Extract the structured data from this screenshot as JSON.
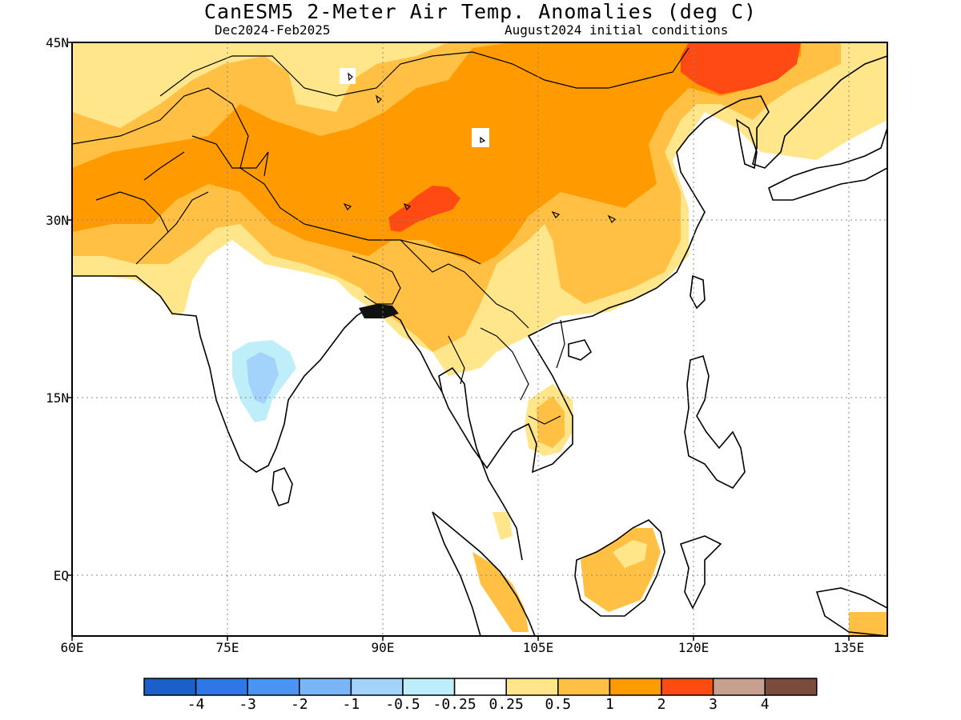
{
  "title": "CanESM5 2-Meter Air Temp. Anomalies (deg C)",
  "subtitle_left": "Dec2024-Feb2025",
  "subtitle_right": "August2024 initial conditions",
  "latitude_labels": [
    "45N",
    "30N",
    "15N",
    "EQ"
  ],
  "longitude_labels": [
    "60E",
    "75E",
    "90E",
    "105E",
    "120E",
    "135E"
  ],
  "colorbar": {
    "colors": [
      "#1c5fcb",
      "#2f76e8",
      "#4b95f2",
      "#7ab6f6",
      "#a3d2fa",
      "#bfeefb",
      "#ffffff",
      "#ffe68a",
      "#ffc043",
      "#ff9a00",
      "#ff4a14",
      "#c8a091",
      "#7a4c3e"
    ],
    "labels": [
      "-4",
      "-3",
      "-2",
      "-1",
      "-0.5",
      "-0.25",
      "0.25",
      "0.5",
      "1",
      "2",
      "3",
      "4"
    ]
  },
  "legend_colors": {
    "anomaly_0_25_0_5": "#ffe68a",
    "anomaly_0_5_1": "#ffc043",
    "anomaly_1_2": "#ff9a00",
    "anomaly_2_3": "#ff4a14",
    "anomaly_neg_0_5_neg_0_25": "#bfeefb",
    "anomaly_neg_1_neg_0_5": "#a3d2fa"
  }
}
